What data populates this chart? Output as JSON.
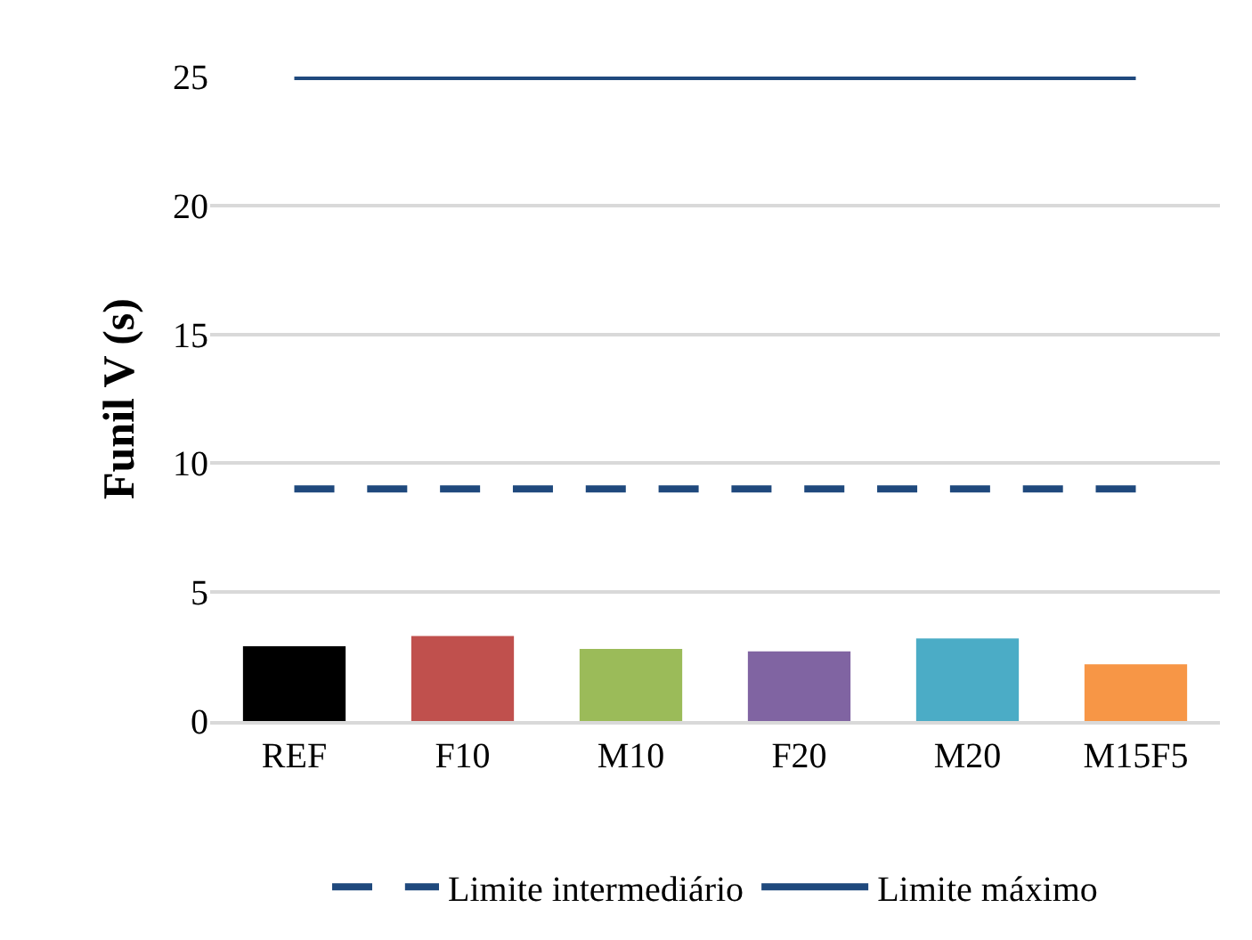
{
  "chart_data": {
    "type": "bar",
    "ylabel": "Funil V (s)",
    "categories": [
      "REF",
      "F10",
      "M10",
      "F20",
      "M20",
      "M15F5"
    ],
    "series": [
      {
        "colors": [
          "#000000",
          "#c0504d",
          "#9bbb59",
          "#8064a2",
          "#4bacc6",
          "#f79646"
        ],
        "values": [
          2.9,
          3.3,
          2.8,
          2.7,
          3.2,
          2.2
        ]
      },
      {
        "type": "line",
        "name": "Limite intermediário",
        "color": "#1f497d",
        "line_style": "dashed",
        "values": [
          9,
          9,
          9,
          9,
          9,
          9
        ]
      },
      {
        "type": "line",
        "name": "Limite máximo",
        "color": "#1f497d",
        "line_style": "solid",
        "values": [
          25,
          25,
          25,
          25,
          25,
          25
        ]
      }
    ],
    "ylim": [
      0,
      25
    ],
    "yticks": [
      0,
      5,
      10,
      15,
      20,
      25
    ],
    "grid": "y",
    "legend": "bottom",
    "marker": "none"
  }
}
